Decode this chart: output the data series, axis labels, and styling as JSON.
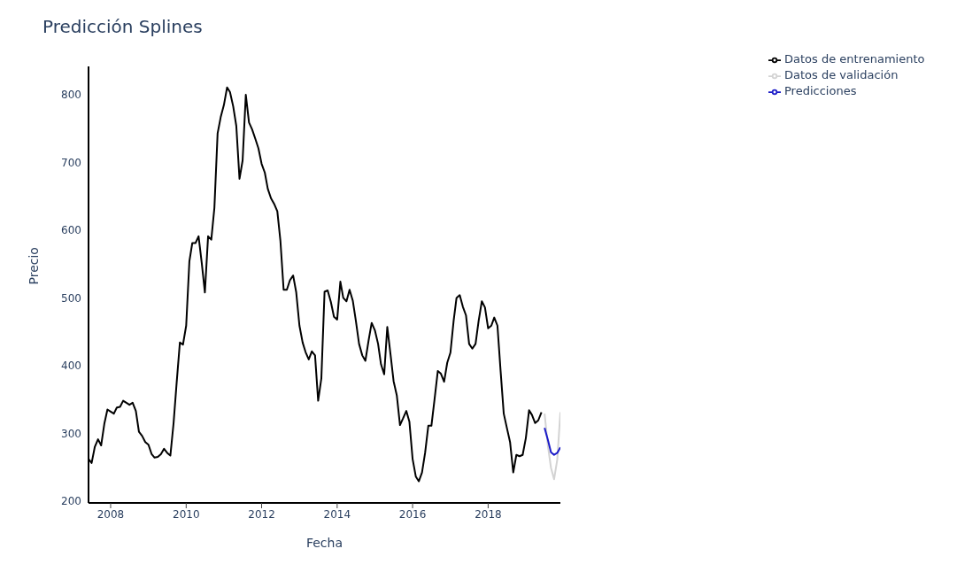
{
  "chart_data": {
    "type": "line",
    "title": "Predicción Splines",
    "xlabel": "Fecha",
    "ylabel": "Precio",
    "xlim": [
      "2007-06",
      "2019-12"
    ],
    "xticks": [
      "2008",
      "2010",
      "2012",
      "2014",
      "2016",
      "2018"
    ],
    "ylim": [
      197,
      842
    ],
    "yticks": [
      200,
      300,
      400,
      500,
      600,
      700,
      800
    ],
    "grid": false,
    "legend": "top right",
    "line_style": "solid",
    "series": [
      {
        "name": "Datos de entrenamiento",
        "color": "#000000",
        "x": [
          "2007-06",
          "2007-07",
          "2007-08",
          "2007-09",
          "2007-10",
          "2007-11",
          "2007-12",
          "2008-01",
          "2008-02",
          "2008-03",
          "2008-04",
          "2008-05",
          "2008-06",
          "2008-07",
          "2008-08",
          "2008-09",
          "2008-10",
          "2008-11",
          "2008-12",
          "2009-01",
          "2009-02",
          "2009-03",
          "2009-04",
          "2009-05",
          "2009-06",
          "2009-07",
          "2009-08",
          "2009-09",
          "2009-10",
          "2009-11",
          "2009-12",
          "2010-01",
          "2010-02",
          "2010-03",
          "2010-04",
          "2010-05",
          "2010-06",
          "2010-07",
          "2010-08",
          "2010-09",
          "2010-10",
          "2010-11",
          "2010-12",
          "2011-01",
          "2011-02",
          "2011-03",
          "2011-04",
          "2011-05",
          "2011-06",
          "2011-07",
          "2011-08",
          "2011-09",
          "2011-10",
          "2011-11",
          "2011-12",
          "2012-01",
          "2012-02",
          "2012-03",
          "2012-04",
          "2012-05",
          "2012-06",
          "2012-07",
          "2012-08",
          "2012-09",
          "2012-10",
          "2012-11",
          "2012-12",
          "2013-01",
          "2013-02",
          "2013-03",
          "2013-04",
          "2013-05",
          "2013-06",
          "2013-07",
          "2013-08",
          "2013-09",
          "2013-10",
          "2013-11",
          "2013-12",
          "2014-01",
          "2014-02",
          "2014-03",
          "2014-04",
          "2014-05",
          "2014-06",
          "2014-07",
          "2014-08",
          "2014-09",
          "2014-10",
          "2014-11",
          "2014-12",
          "2015-01",
          "2015-02",
          "2015-03",
          "2015-04",
          "2015-05",
          "2015-06",
          "2015-07",
          "2015-08",
          "2015-09",
          "2015-10",
          "2015-11",
          "2015-12",
          "2016-01",
          "2016-02",
          "2016-03",
          "2016-04",
          "2016-05",
          "2016-06",
          "2016-07",
          "2016-08",
          "2016-09",
          "2016-10",
          "2016-11",
          "2016-12",
          "2017-01",
          "2017-02",
          "2017-03",
          "2017-04",
          "2017-05",
          "2017-06",
          "2017-07",
          "2017-08",
          "2017-09",
          "2017-10",
          "2017-11",
          "2017-12",
          "2018-01",
          "2018-02",
          "2018-03",
          "2018-04",
          "2018-05",
          "2018-06",
          "2018-07",
          "2018-08",
          "2018-09",
          "2018-10",
          "2018-11",
          "2018-12",
          "2019-01",
          "2019-02",
          "2019-03",
          "2019-04",
          "2019-05",
          "2019-06"
        ],
        "values": [
          262,
          256,
          280,
          291,
          282,
          314,
          335,
          332,
          329,
          338,
          339,
          348,
          345,
          342,
          345,
          333,
          302,
          296,
          287,
          283,
          269,
          264,
          265,
          269,
          277,
          271,
          267,
          315,
          375,
          434,
          431,
          459,
          554,
          581,
          581,
          591,
          551,
          508,
          591,
          586,
          633,
          743,
          767,
          785,
          811,
          804,
          783,
          754,
          676,
          703,
          800,
          759,
          749,
          735,
          721,
          698,
          685,
          661,
          647,
          639,
          628,
          584,
          512,
          512,
          526,
          533,
          508,
          459,
          434,
          420,
          409,
          421,
          415,
          348,
          381,
          509,
          511,
          494,
          472,
          468,
          524,
          500,
          495,
          512,
          496,
          466,
          432,
          415,
          407,
          437,
          463,
          452,
          432,
          402,
          387,
          457,
          417,
          377,
          356,
          312,
          322,
          333,
          317,
          262,
          236,
          229,
          242,
          271,
          311,
          311,
          351,
          392,
          388,
          376,
          404,
          419,
          466,
          500,
          504,
          487,
          474,
          432,
          425,
          432,
          466,
          495,
          486,
          455,
          459,
          471,
          459,
          393,
          329,
          308,
          287,
          242,
          268,
          266,
          268,
          293,
          334,
          327,
          315,
          319,
          331
        ]
      },
      {
        "name": "Datos de validación",
        "color": "#d3d3d3",
        "x": [
          "2019-07",
          "2019-08",
          "2019-09",
          "2019-10",
          "2019-11",
          "2019-12"
        ],
        "values": [
          329,
          283,
          249,
          232,
          261,
          331
        ]
      },
      {
        "name": "Predicciones",
        "color": "#1c1cc8",
        "x": [
          "2019-07",
          "2019-08",
          "2019-09",
          "2019-10",
          "2019-11",
          "2019-12"
        ],
        "values": [
          308,
          291,
          272,
          268,
          271,
          279
        ]
      }
    ]
  }
}
